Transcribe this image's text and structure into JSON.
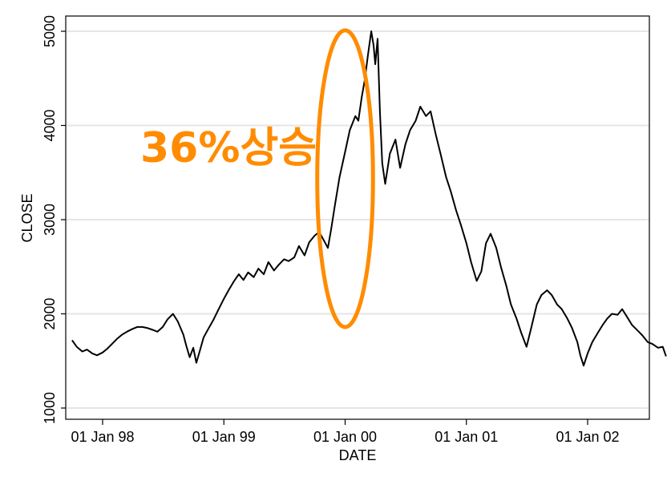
{
  "chart_data": {
    "type": "line",
    "title": "",
    "xlabel": "DATE",
    "ylabel": "CLOSE",
    "ylim": [
      1000,
      5000
    ],
    "yticks": [
      1000,
      2000,
      3000,
      4000,
      5000
    ],
    "ytick_labels": [
      "1000",
      "2000",
      "3000",
      "4000",
      "5000"
    ],
    "xticks": [
      "1998-01-01",
      "1999-01-01",
      "2000-01-01",
      "2001-01-01",
      "2002-01-01"
    ],
    "xtick_labels": [
      "01 Jan 98",
      "01 Jan 99",
      "01 Jan 00",
      "01 Jan 01",
      "01 Jan 02"
    ],
    "xlim": [
      "1997-10-01",
      "2002-06-20"
    ],
    "grid": true,
    "colors": {
      "line": "#000000",
      "grid": "#e6e6e6",
      "highlight": "#ff8c00"
    },
    "annotation": {
      "text": "36%상승",
      "ellipse_center": [
        "2000-01-01",
        3450
      ],
      "ellipse_span_years": 0.46,
      "ellipse_span_values": [
        1860,
        5010
      ]
    },
    "series": [
      {
        "name": "CLOSE",
        "points": [
          [
            "1997-10-01",
            1720
          ],
          [
            "1997-10-15",
            1650
          ],
          [
            "1997-11-01",
            1600
          ],
          [
            "1997-11-15",
            1620
          ],
          [
            "1997-12-01",
            1580
          ],
          [
            "1997-12-15",
            1560
          ],
          [
            "1998-01-01",
            1590
          ],
          [
            "1998-01-15",
            1630
          ],
          [
            "1998-02-01",
            1690
          ],
          [
            "1998-02-15",
            1740
          ],
          [
            "1998-03-01",
            1780
          ],
          [
            "1998-03-15",
            1810
          ],
          [
            "1998-04-01",
            1840
          ],
          [
            "1998-04-15",
            1860
          ],
          [
            "1998-05-01",
            1860
          ],
          [
            "1998-05-15",
            1850
          ],
          [
            "1998-06-01",
            1830
          ],
          [
            "1998-06-15",
            1810
          ],
          [
            "1998-07-01",
            1860
          ],
          [
            "1998-07-15",
            1940
          ],
          [
            "1998-08-01",
            2000
          ],
          [
            "1998-08-15",
            1920
          ],
          [
            "1998-09-01",
            1780
          ],
          [
            "1998-09-10",
            1660
          ],
          [
            "1998-09-20",
            1540
          ],
          [
            "1998-10-01",
            1640
          ],
          [
            "1998-10-10",
            1480
          ],
          [
            "1998-10-20",
            1600
          ],
          [
            "1998-11-01",
            1750
          ],
          [
            "1998-11-15",
            1840
          ],
          [
            "1998-12-01",
            1940
          ],
          [
            "1998-12-15",
            2040
          ],
          [
            "1999-01-01",
            2160
          ],
          [
            "1999-01-15",
            2250
          ],
          [
            "1999-02-01",
            2350
          ],
          [
            "1999-02-15",
            2420
          ],
          [
            "1999-03-01",
            2360
          ],
          [
            "1999-03-15",
            2440
          ],
          [
            "1999-04-01",
            2390
          ],
          [
            "1999-04-15",
            2480
          ],
          [
            "1999-05-01",
            2420
          ],
          [
            "1999-05-15",
            2550
          ],
          [
            "1999-06-01",
            2460
          ],
          [
            "1999-06-15",
            2520
          ],
          [
            "1999-07-01",
            2580
          ],
          [
            "1999-07-15",
            2560
          ],
          [
            "1999-08-01",
            2600
          ],
          [
            "1999-08-15",
            2720
          ],
          [
            "1999-09-01",
            2620
          ],
          [
            "1999-09-15",
            2760
          ],
          [
            "1999-10-01",
            2830
          ],
          [
            "1999-10-15",
            2870
          ],
          [
            "1999-11-01",
            2760
          ],
          [
            "1999-11-10",
            2700
          ],
          [
            "1999-11-20",
            2900
          ],
          [
            "1999-12-01",
            3150
          ],
          [
            "1999-12-15",
            3450
          ],
          [
            "2000-01-01",
            3720
          ],
          [
            "2000-01-15",
            3950
          ],
          [
            "2000-02-01",
            4100
          ],
          [
            "2000-02-10",
            4050
          ],
          [
            "2000-02-20",
            4300
          ],
          [
            "2000-03-01",
            4500
          ],
          [
            "2000-03-10",
            4750
          ],
          [
            "2000-03-20",
            5000
          ],
          [
            "2000-03-27",
            4850
          ],
          [
            "2000-04-01",
            4650
          ],
          [
            "2000-04-08",
            4920
          ],
          [
            "2000-04-15",
            4150
          ],
          [
            "2000-04-22",
            3600
          ],
          [
            "2000-05-01",
            3380
          ],
          [
            "2000-05-15",
            3700
          ],
          [
            "2000-06-01",
            3850
          ],
          [
            "2000-06-15",
            3550
          ],
          [
            "2000-07-01",
            3800
          ],
          [
            "2000-07-15",
            3950
          ],
          [
            "2000-08-01",
            4050
          ],
          [
            "2000-08-15",
            4200
          ],
          [
            "2000-09-01",
            4100
          ],
          [
            "2000-09-15",
            4150
          ],
          [
            "2000-10-01",
            3900
          ],
          [
            "2000-10-15",
            3700
          ],
          [
            "2000-11-01",
            3450
          ],
          [
            "2000-11-15",
            3300
          ],
          [
            "2000-12-01",
            3100
          ],
          [
            "2000-12-15",
            2950
          ],
          [
            "2001-01-01",
            2750
          ],
          [
            "2001-01-15",
            2550
          ],
          [
            "2001-02-01",
            2350
          ],
          [
            "2001-02-15",
            2450
          ],
          [
            "2001-03-01",
            2750
          ],
          [
            "2001-03-15",
            2850
          ],
          [
            "2001-04-01",
            2700
          ],
          [
            "2001-04-15",
            2500
          ],
          [
            "2001-05-01",
            2300
          ],
          [
            "2001-05-15",
            2100
          ],
          [
            "2001-06-01",
            1950
          ],
          [
            "2001-06-15",
            1800
          ],
          [
            "2001-07-01",
            1650
          ],
          [
            "2001-07-15",
            1850
          ],
          [
            "2001-08-01",
            2100
          ],
          [
            "2001-08-15",
            2200
          ],
          [
            "2001-09-01",
            2250
          ],
          [
            "2001-09-15",
            2200
          ],
          [
            "2001-10-01",
            2100
          ],
          [
            "2001-10-15",
            2050
          ],
          [
            "2001-11-01",
            1950
          ],
          [
            "2001-11-15",
            1850
          ],
          [
            "2001-12-01",
            1700
          ],
          [
            "2001-12-10",
            1560
          ],
          [
            "2001-12-20",
            1450
          ],
          [
            "2002-01-01",
            1580
          ],
          [
            "2002-01-15",
            1700
          ],
          [
            "2002-02-01",
            1800
          ],
          [
            "2002-02-15",
            1880
          ],
          [
            "2002-03-01",
            1950
          ],
          [
            "2002-03-15",
            2000
          ],
          [
            "2002-04-01",
            1990
          ],
          [
            "2002-04-15",
            2050
          ],
          [
            "2002-05-01",
            1960
          ],
          [
            "2002-05-15",
            1880
          ],
          [
            "2002-06-01",
            1820
          ],
          [
            "2002-06-15",
            1770
          ],
          [
            "2002-07-01",
            1700
          ],
          [
            "2002-07-15",
            1680
          ],
          [
            "2002-08-01",
            1640
          ],
          [
            "2002-08-15",
            1650
          ],
          [
            "2002-08-25",
            1550
          ]
        ]
      }
    ]
  }
}
